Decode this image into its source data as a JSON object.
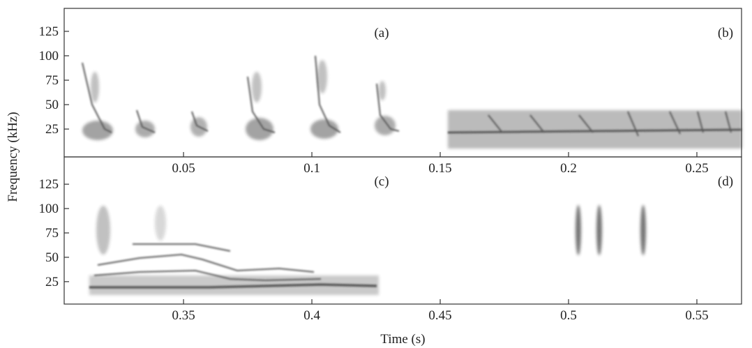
{
  "chart_data": [
    {
      "type": "spectrogram",
      "ylabel": "Frequency (kHz)",
      "labels": [
        "(a)",
        "(b)"
      ],
      "xlim": [
        0.0035,
        0.2674
      ],
      "xticks": [
        0.05,
        0.1,
        0.15,
        0.2,
        0.25
      ],
      "ylim": [
        -3.5,
        148.5
      ],
      "yticks": [
        25,
        50,
        75,
        100,
        125
      ]
    },
    {
      "type": "spectrogram",
      "xlabel": "Time (s)",
      "labels": [
        "(c)",
        "(d)"
      ],
      "xlim": [
        0.3035,
        0.5674
      ],
      "xticks": [
        0.35,
        0.4,
        0.45,
        0.5,
        0.55
      ],
      "ylim": [
        2,
        153
      ],
      "yticks": [
        25,
        50,
        75,
        100,
        125
      ]
    }
  ]
}
